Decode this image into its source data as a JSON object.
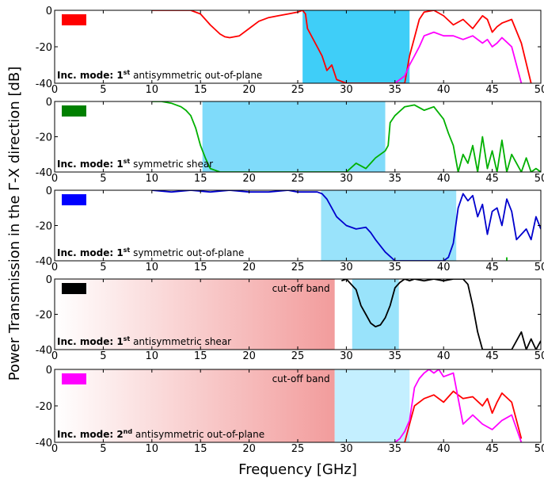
{
  "chart_data": {
    "type": "line",
    "ylabel": "Power Transmission in the Γ-X direction [dB]",
    "xlabel": "Frequency [GHz]",
    "xlim": [
      0,
      50
    ],
    "ylim": [
      -40,
      0
    ],
    "xticks": [
      0,
      5,
      10,
      15,
      20,
      25,
      30,
      35,
      40,
      45,
      50
    ],
    "yticks": [
      0,
      -20,
      -40
    ],
    "panels": [
      {
        "legend_color": "#ff0000",
        "mode_bold": "Inc. mode",
        "mode_prefix": ": 1",
        "mode_sup": "st",
        "mode_rest": " antisymmetric out-of-plane",
        "cutoff_label": "",
        "cutoff_band": null,
        "bandgap": [
          25.5,
          36.5
        ],
        "bandgap_color": "#3fcef8",
        "series": [
          {
            "color": "#ff0000",
            "x": [
              10,
              12,
              14,
              15,
              16,
              17,
              17.5,
              18,
              19,
              20,
              21,
              22,
              23,
              24,
              25,
              25.5,
              25.8,
              26,
              27,
              27.5,
              28,
              28.5,
              29,
              30,
              31,
              32,
              33,
              34,
              35,
              36,
              36.5,
              37,
              37.5,
              38,
              39,
              40,
              41,
              42,
              43,
              44,
              44.5,
              45,
              45.5,
              46,
              47,
              48,
              49
            ],
            "y": [
              0,
              0,
              0,
              -2,
              -8,
              -13,
              -14.5,
              -15,
              -14,
              -10,
              -6,
              -4,
              -3,
              -2,
              -1,
              0,
              -2,
              -10,
              -20,
              -25,
              -33,
              -30,
              -38,
              -40,
              -40,
              -40,
              -40,
              -40,
              -40,
              -40,
              -25,
              -15,
              -5,
              -1,
              0,
              -3,
              -8,
              -5,
              -10,
              -3,
              -5,
              -12,
              -9,
              -7,
              -5,
              -18,
              -40
            ]
          },
          {
            "color": "#ff00ff",
            "x": [
              35,
              36,
              36.5,
              37,
              37.5,
              38,
              38.5,
              39,
              40,
              41,
              42,
              43,
              44,
              44.5,
              45,
              45.5,
              46,
              47,
              48
            ],
            "y": [
              -40,
              -36,
              -30,
              -25,
              -20,
              -14,
              -13,
              -12,
              -14,
              -14,
              -16,
              -14,
              -18,
              -16,
              -20,
              -18,
              -15,
              -20,
              -40
            ]
          }
        ]
      },
      {
        "legend_color": "#008000",
        "mode_bold": "Inc. mode",
        "mode_prefix": ": 1",
        "mode_sup": "st",
        "mode_rest": " symmetric shear",
        "cutoff_label": "",
        "cutoff_band": null,
        "bandgap": [
          15.2,
          34.0
        ],
        "bandgap_color": "#7fdbfa",
        "series": [
          {
            "color": "#00b000",
            "x": [
              10,
              11,
              12,
              13,
              13.5,
              14,
              14.5,
              15,
              15.5,
              16,
              17,
              18,
              19,
              20,
              21,
              22,
              23,
              24,
              25,
              26,
              27,
              28,
              29,
              30,
              31,
              32,
              33,
              34,
              34.3,
              34.5,
              35,
              36,
              37,
              38,
              39,
              40,
              40.5,
              41,
              41.5,
              42,
              42.5,
              43,
              43.5,
              44,
              44.5,
              45,
              45.5,
              46,
              46.5,
              47,
              47.5,
              48,
              48.5,
              49,
              49.5,
              50
            ],
            "y": [
              0,
              0,
              -1,
              -3,
              -5,
              -8,
              -15,
              -25,
              -32,
              -38,
              -40,
              -40,
              -40,
              -40,
              -40,
              -40,
              -40,
              -40,
              -40,
              -40,
              -40,
              -40,
              -40,
              -40,
              -35,
              -38,
              -32,
              -28,
              -25,
              -12,
              -8,
              -3,
              -2,
              -5,
              -3,
              -10,
              -18,
              -25,
              -40,
              -30,
              -35,
              -25,
              -40,
              -20,
              -38,
              -28,
              -40,
              -22,
              -40,
              -30,
              -35,
              -40,
              -32,
              -40,
              -38,
              -40
            ]
          }
        ]
      },
      {
        "legend_color": "#0000ff",
        "mode_bold": "Inc. mode",
        "mode_prefix": ": 1",
        "mode_sup": "st",
        "mode_rest": " symmetric out-of-plane",
        "cutoff_label": "",
        "cutoff_band": null,
        "bandgap": [
          27.4,
          41.3
        ],
        "bandgap_color": "#99e3fb",
        "series": [
          {
            "color": "#0000cd",
            "x": [
              10,
              12,
              14,
              16,
              18,
              20,
              22,
              24,
              25,
              26,
              27,
              27.5,
              28,
              28.5,
              29,
              30,
              31,
              32,
              32.5,
              33,
              34,
              35,
              36,
              38,
              40,
              40.5,
              41,
              41.5,
              42,
              42.5,
              43,
              43.5,
              44,
              44.5,
              45,
              45.5,
              46,
              46.5,
              47,
              47.5,
              48,
              48.5,
              49,
              49.5,
              50
            ],
            "y": [
              0,
              -1,
              0,
              -1,
              0,
              -1,
              -1,
              0,
              -1,
              -1,
              -1,
              -2,
              -5,
              -10,
              -15,
              -20,
              -22,
              -21,
              -24,
              -28,
              -35,
              -40,
              -40,
              -40,
              -40,
              -38,
              -30,
              -10,
              -2,
              -6,
              -3,
              -15,
              -8,
              -25,
              -12,
              -10,
              -20,
              -5,
              -12,
              -28,
              -25,
              -22,
              -28,
              -15,
              -22
            ]
          },
          {
            "color": "#00b000",
            "x": [
              46.5,
              46.5
            ],
            "y": [
              -40,
              -38
            ]
          }
        ]
      },
      {
        "legend_color": "#000000",
        "mode_bold": "Inc. mode",
        "mode_prefix": ": 1",
        "mode_sup": "st",
        "mode_rest": " antisymmetric shear",
        "cutoff_label": "cut-off band",
        "cutoff_band": [
          0,
          28.8
        ],
        "bandgap": [
          30.6,
          35.4
        ],
        "bandgap_color": "#99e3fb",
        "series": [
          {
            "color": "#000000",
            "x": [
              29.5,
              30,
              30.5,
              31,
              31.5,
              32,
              32.5,
              33,
              33.5,
              34,
              34.5,
              35,
              35.5,
              36,
              36.5,
              37,
              38,
              39,
              40,
              41,
              42,
              42.5,
              43,
              43.5,
              44,
              44.5,
              45,
              46,
              47,
              48,
              48.5,
              49,
              49.5,
              50
            ],
            "y": [
              -1,
              0,
              -3,
              -6,
              -15,
              -20,
              -25,
              -27,
              -26,
              -22,
              -15,
              -5,
              -2,
              0,
              -1,
              0,
              -1,
              0,
              -1,
              0,
              0,
              -3,
              -15,
              -30,
              -40,
              -40,
              -40,
              -40,
              -40,
              -30,
              -40,
              -34,
              -40,
              -35
            ]
          }
        ]
      },
      {
        "legend_color": "#ff00ff",
        "mode_bold": "Inc. mode",
        "mode_prefix": ": 2",
        "mode_sup": "nd",
        "mode_rest": " antisymmetric out-of-plane",
        "cutoff_label": "cut-off band",
        "cutoff_band": [
          0,
          28.8
        ],
        "bandgap": [
          28.8,
          36.5
        ],
        "bandgap_color": "#c4efff",
        "series": [
          {
            "color": "#ff0000",
            "x": [
              36,
              36.5,
              37,
              38,
              39,
              40,
              41,
              42,
              43,
              44,
              44.5,
              45,
              45.5,
              46,
              47,
              48
            ],
            "y": [
              -40,
              -30,
              -20,
              -16,
              -14,
              -18,
              -12,
              -16,
              -15,
              -20,
              -16,
              -24,
              -18,
              -13,
              -18,
              -38
            ]
          },
          {
            "color": "#ff00ff",
            "x": [
              35,
              35.5,
              36,
              36.5,
              37,
              37.5,
              38,
              38.5,
              39,
              39.5,
              40,
              41,
              42,
              43,
              44,
              45,
              46,
              47,
              48
            ],
            "y": [
              -40,
              -38,
              -34,
              -28,
              -10,
              -5,
              -2,
              0,
              -2,
              0,
              -4,
              -2,
              -30,
              -25,
              -30,
              -33,
              -28,
              -25,
              -40
            ]
          }
        ]
      }
    ]
  }
}
